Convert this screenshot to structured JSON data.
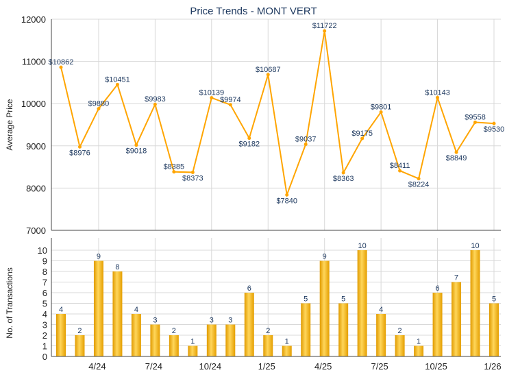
{
  "chart_data": [
    {
      "type": "line",
      "title": "Price Trends - MONT VERT",
      "ylabel": "Average Price",
      "ylim": [
        7000,
        12000
      ],
      "yticks": [
        7000,
        8000,
        9000,
        10000,
        11000,
        12000
      ],
      "grid": true,
      "color": "#FFA500",
      "values": [
        10862,
        8976,
        9880,
        10451,
        9018,
        9983,
        8385,
        8373,
        10139,
        9974,
        9182,
        10687,
        7840,
        9037,
        11722,
        8363,
        9175,
        9801,
        8411,
        8224,
        10143,
        8849,
        9558,
        9530
      ],
      "labels": [
        "$10862",
        "$8976",
        "$9880",
        "$10451",
        "$9018",
        "$9983",
        "$8385",
        "$8373",
        "$10139",
        "$9974",
        "$9182",
        "$10687",
        "$7840",
        "$9037",
        "$11722",
        "$8363",
        "$9175",
        "$9801",
        "$8411",
        "$8224",
        "$10143",
        "$8849",
        "$9558",
        "$9530"
      ]
    },
    {
      "type": "bar",
      "ylabel": "No. of Transactions",
      "ylim": [
        0,
        10
      ],
      "yticks": [
        0,
        1,
        2,
        3,
        4,
        5,
        6,
        7,
        8,
        9,
        10
      ],
      "grid": true,
      "color": "#F5B000",
      "values": [
        4,
        2,
        9,
        8,
        4,
        3,
        2,
        1,
        3,
        3,
        6,
        2,
        1,
        5,
        9,
        5,
        10,
        4,
        2,
        1,
        6,
        7,
        10,
        5
      ],
      "xtick_labels": [
        {
          "index": 2,
          "label": "4/24"
        },
        {
          "index": 5,
          "label": "7/24"
        },
        {
          "index": 8,
          "label": "10/24"
        },
        {
          "index": 11,
          "label": "1/25"
        },
        {
          "index": 14,
          "label": "4/25"
        },
        {
          "index": 17,
          "label": "7/25"
        },
        {
          "index": 20,
          "label": "10/25"
        },
        {
          "index": 23,
          "label": "1/26"
        }
      ]
    }
  ]
}
